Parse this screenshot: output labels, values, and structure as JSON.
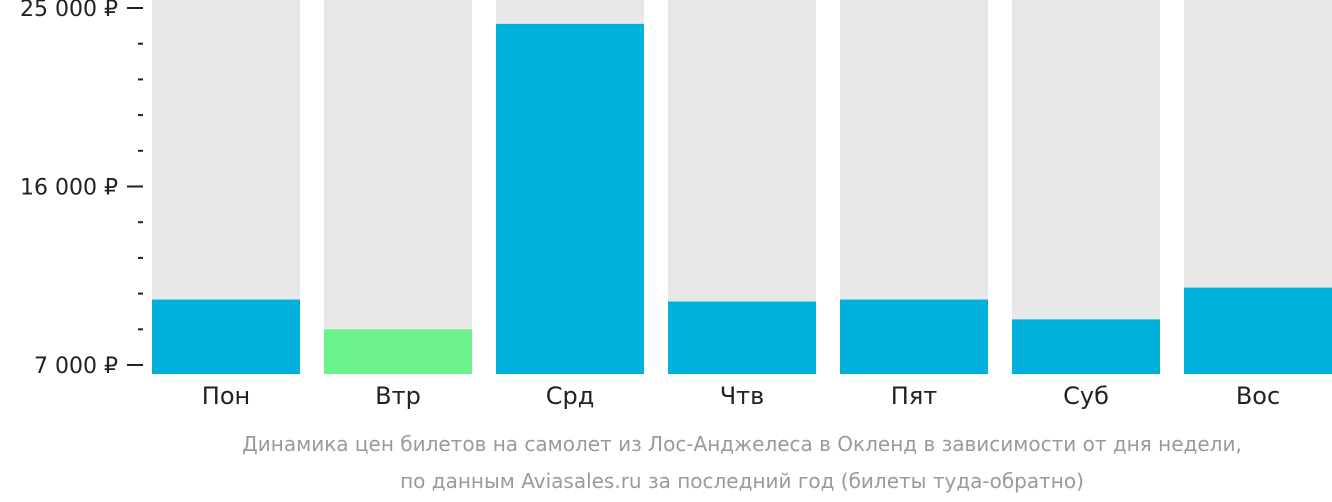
{
  "chart_data": {
    "type": "bar",
    "categories": [
      "Пон",
      "Втр",
      "Срд",
      "Чтв",
      "Пят",
      "Суб",
      "Вос"
    ],
    "values": [
      10300,
      8800,
      24200,
      10200,
      10300,
      9300,
      10900
    ],
    "highlight": [
      false,
      true,
      false,
      false,
      false,
      false,
      false
    ],
    "y_tick_labels": [
      {
        "value": 25000,
        "label": "25 000 ₽"
      },
      {
        "value": 16000,
        "label": "16 000 ₽"
      },
      {
        "value": 7000,
        "label": "7 000 ₽"
      }
    ],
    "ylim": [
      7000,
      25000
    ],
    "grid": false,
    "legend": "none",
    "colors": {
      "bar": "#00b0dd",
      "highlight": "#6bf28b",
      "background_column": "#e8e8e8",
      "axis_text": "#222222",
      "caption_text": "#9a9a9a"
    }
  },
  "caption": {
    "line1": "Динамика цен билетов на самолет из Лос-Анджелеса в Окленд в зависимости от дня недели,",
    "line2": "по данным Aviasales.ru за последний год (билеты туда-обратно)"
  }
}
